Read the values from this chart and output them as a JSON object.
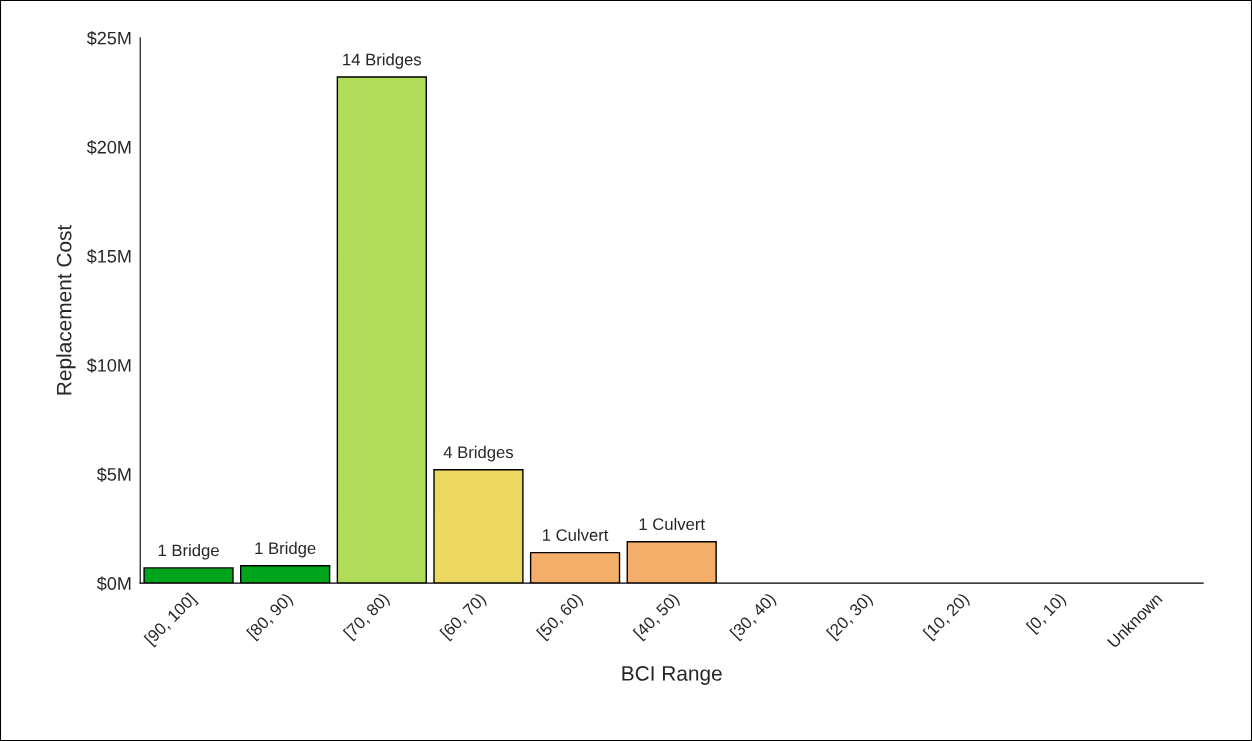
{
  "chart_data": {
    "type": "bar",
    "xlabel": "BCI Range",
    "ylabel": "Replacement Cost",
    "categories": [
      "[90, 100]",
      "[80, 90)",
      "[70, 80)",
      "[60, 70)",
      "[50, 60)",
      "[40, 50)",
      "[30, 40)",
      "[20, 30)",
      "[10, 20)",
      "[0, 10)",
      "Unknown"
    ],
    "values": [
      0.7,
      0.8,
      23.2,
      5.2,
      1.4,
      1.9,
      null,
      null,
      null,
      null,
      null
    ],
    "colors": [
      "#00a51c",
      "#00a51c",
      "#b0dc5a",
      "#ecd860",
      "#f5ae6a",
      "#f5ae6a",
      "#f5ae6a",
      "#f5ae6a",
      "#f5ae6a",
      "#f5ae6a",
      "#f5ae6a"
    ],
    "annotations": [
      {
        "text": "1 Bridge",
        "x": "[90, 100]",
        "y": 0.7
      },
      {
        "text": "1 Bridge",
        "x": "[80, 90)",
        "y": 0.8
      },
      {
        "text": "14 Bridges",
        "x": "[70, 80)",
        "y": 23.2
      },
      {
        "text": "4 Bridges",
        "x": "[60, 70)",
        "y": 5.2
      },
      {
        "text": "1 Culvert",
        "x": "[50, 60)",
        "y": 1.4
      },
      {
        "text": "1 Culvert",
        "x": "[40, 50)",
        "y": 1.9
      }
    ],
    "ylim": [
      0,
      25
    ],
    "yticks": [
      {
        "value": 0,
        "label": "$0M"
      },
      {
        "value": 5,
        "label": "$5M"
      },
      {
        "value": 10,
        "label": "$10M"
      },
      {
        "value": 15,
        "label": "$15M"
      },
      {
        "value": 20,
        "label": "$20M"
      },
      {
        "value": 25,
        "label": "$25M"
      }
    ],
    "grid": false,
    "legend": false
  }
}
